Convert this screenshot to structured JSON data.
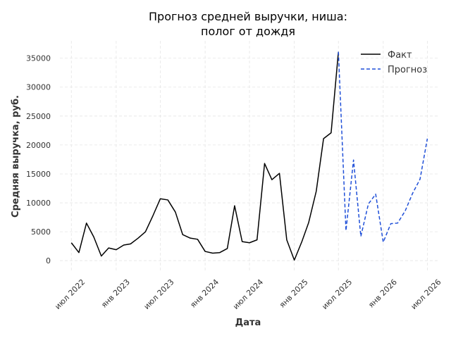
{
  "chart_data": {
    "type": "line",
    "title_lines": [
      "Прогноз средней выручки, ниша:",
      "полог от дождя"
    ],
    "xlabel": "Дата",
    "ylabel": "Средняя выручка, руб.",
    "x_ticks": [
      {
        "date": "2022-07-01",
        "label": "июл 2022"
      },
      {
        "date": "2023-01-01",
        "label": "янв 2023"
      },
      {
        "date": "2023-07-01",
        "label": "июл 2023"
      },
      {
        "date": "2024-01-01",
        "label": "янв 2024"
      },
      {
        "date": "2024-07-01",
        "label": "июл 2024"
      },
      {
        "date": "2025-01-01",
        "label": "янв 2025"
      },
      {
        "date": "2025-07-01",
        "label": "июл 2025"
      },
      {
        "date": "2026-01-01",
        "label": "янв 2026"
      },
      {
        "date": "2026-07-01",
        "label": "июл 2026"
      }
    ],
    "y_ticks": [
      0,
      5000,
      10000,
      15000,
      20000,
      25000,
      30000,
      35000
    ],
    "xlim": [
      "2022-05-15",
      "2026-08-15"
    ],
    "ylim": [
      -1800,
      38000
    ],
    "grid": true,
    "legend_position": "top-right",
    "series": [
      {
        "name": "Факт",
        "style": "solid",
        "color": "#000000",
        "points": [
          {
            "x": "2022-07-01",
            "y": 3100
          },
          {
            "x": "2022-08-01",
            "y": 1400
          },
          {
            "x": "2022-09-01",
            "y": 6500
          },
          {
            "x": "2022-10-01",
            "y": 4100
          },
          {
            "x": "2022-11-01",
            "y": 800
          },
          {
            "x": "2022-12-01",
            "y": 2200
          },
          {
            "x": "2023-01-01",
            "y": 1900
          },
          {
            "x": "2023-02-01",
            "y": 2700
          },
          {
            "x": "2023-03-01",
            "y": 2900
          },
          {
            "x": "2023-04-01",
            "y": 3900
          },
          {
            "x": "2023-05-01",
            "y": 5000
          },
          {
            "x": "2023-06-01",
            "y": 7800
          },
          {
            "x": "2023-07-01",
            "y": 10700
          },
          {
            "x": "2023-08-01",
            "y": 10500
          },
          {
            "x": "2023-09-01",
            "y": 8400
          },
          {
            "x": "2023-10-01",
            "y": 4500
          },
          {
            "x": "2023-11-01",
            "y": 3900
          },
          {
            "x": "2023-12-01",
            "y": 3700
          },
          {
            "x": "2024-01-01",
            "y": 1600
          },
          {
            "x": "2024-02-01",
            "y": 1300
          },
          {
            "x": "2024-03-01",
            "y": 1400
          },
          {
            "x": "2024-04-01",
            "y": 2100
          },
          {
            "x": "2024-05-01",
            "y": 9500
          },
          {
            "x": "2024-06-01",
            "y": 3300
          },
          {
            "x": "2024-07-01",
            "y": 3100
          },
          {
            "x": "2024-08-01",
            "y": 3600
          },
          {
            "x": "2024-09-01",
            "y": 16800
          },
          {
            "x": "2024-10-01",
            "y": 14000
          },
          {
            "x": "2024-11-01",
            "y": 15100
          },
          {
            "x": "2024-12-01",
            "y": 3600
          },
          {
            "x": "2025-01-01",
            "y": 100
          },
          {
            "x": "2025-02-01",
            "y": 3300
          },
          {
            "x": "2025-03-01",
            "y": 6600
          },
          {
            "x": "2025-04-01",
            "y": 12000
          },
          {
            "x": "2025-05-01",
            "y": 21100
          },
          {
            "x": "2025-06-01",
            "y": 22100
          },
          {
            "x": "2025-07-01",
            "y": 36100
          }
        ]
      },
      {
        "name": "Прогноз",
        "style": "dashed",
        "color": "#1f4fd8",
        "points": [
          {
            "x": "2025-07-01",
            "y": 36100
          },
          {
            "x": "2025-08-01",
            "y": 5200
          },
          {
            "x": "2025-09-01",
            "y": 17400
          },
          {
            "x": "2025-10-01",
            "y": 4200
          },
          {
            "x": "2025-11-01",
            "y": 9800
          },
          {
            "x": "2025-12-01",
            "y": 11500
          },
          {
            "x": "2026-01-01",
            "y": 3200
          },
          {
            "x": "2026-02-01",
            "y": 6400
          },
          {
            "x": "2026-03-01",
            "y": 6500
          },
          {
            "x": "2026-04-01",
            "y": 8600
          },
          {
            "x": "2026-05-01",
            "y": 11600
          },
          {
            "x": "2026-06-01",
            "y": 14100
          },
          {
            "x": "2026-07-01",
            "y": 21100
          }
        ]
      }
    ]
  }
}
